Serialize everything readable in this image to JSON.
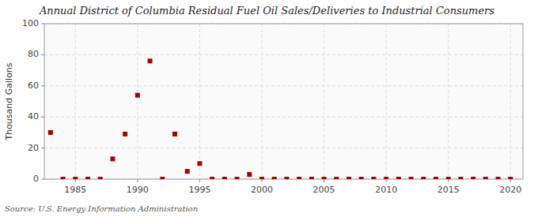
{
  "chart_data": {
    "type": "scatter",
    "title": "Annual District of Columbia Residual Fuel Oil Sales/Deliveries to Industrial Consumers",
    "ylabel": "Thousand Gallons",
    "source": "Source: U.S. Energy Information Administration",
    "x": [
      1983,
      1984,
      1985,
      1986,
      1987,
      1988,
      1989,
      1990,
      1991,
      1992,
      1993,
      1994,
      1995,
      1996,
      1997,
      1998,
      1999,
      2000,
      2001,
      2002,
      2003,
      2004,
      2005,
      2006,
      2007,
      2008,
      2009,
      2010,
      2011,
      2012,
      2013,
      2014,
      2015,
      2016,
      2017,
      2018,
      2019,
      2020
    ],
    "values": [
      30,
      0,
      0,
      0,
      0,
      13,
      29,
      54,
      76,
      0,
      29,
      5,
      10,
      0,
      0,
      0,
      3,
      0,
      0,
      0,
      0,
      0,
      0,
      0,
      0,
      0,
      0,
      0,
      0,
      0,
      0,
      0,
      0,
      0,
      0,
      0,
      0,
      0
    ],
    "color": "#aa0000",
    "marker": "square",
    "xlim": [
      1982.5,
      2021
    ],
    "ylim": [
      0,
      100
    ],
    "xticks": [
      1985,
      1990,
      1995,
      2000,
      2005,
      2010,
      2015,
      2020
    ],
    "yticks": [
      0,
      20,
      40,
      60,
      80,
      100
    ],
    "grid": true
  }
}
